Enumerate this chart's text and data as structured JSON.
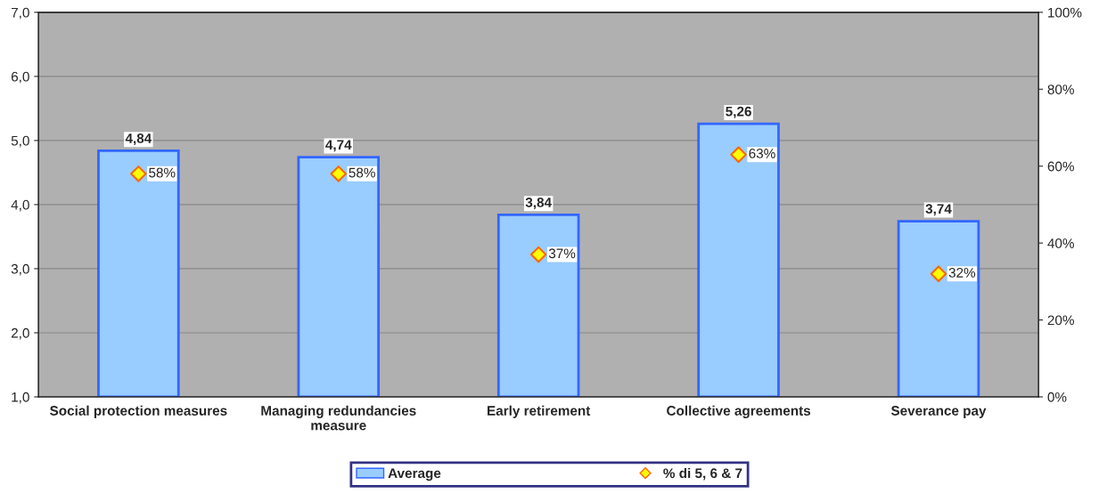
{
  "chart_data": {
    "type": "bar",
    "categories": [
      "Social protection measures",
      "Managing redundancies\nmeasure",
      "Early retirement",
      "Collective agreements",
      "Severance pay"
    ],
    "series": [
      {
        "name": "Average",
        "color": "#99ccff",
        "values": [
          4.84,
          4.74,
          3.84,
          5.26,
          3.74
        ],
        "value_labels": [
          "4,84",
          "4,74",
          "3,84",
          "5,26",
          "3,74"
        ]
      },
      {
        "name": "% di 5, 6 & 7",
        "type": "scatter",
        "axis": "y2",
        "color": "#ffff00",
        "marker": "diamond",
        "values": [
          58,
          58,
          37,
          63,
          32
        ],
        "value_labels": [
          "58%",
          "58%",
          "37%",
          "63%",
          "32%"
        ]
      }
    ],
    "ylim": [
      1,
      7
    ],
    "yticks": [
      {
        "value": 1,
        "label": "1,0"
      },
      {
        "value": 2,
        "label": "2,0"
      },
      {
        "value": 3,
        "label": "3,0"
      },
      {
        "value": 4,
        "label": "4,0"
      },
      {
        "value": 5,
        "label": "5,0"
      },
      {
        "value": 6,
        "label": "6,0"
      },
      {
        "value": 7,
        "label": "7,0"
      }
    ],
    "y2lim": [
      0,
      100
    ],
    "y2ticks": [
      {
        "value": 0,
        "label": "0%"
      },
      {
        "value": 20,
        "label": "20%"
      },
      {
        "value": 40,
        "label": "40%"
      },
      {
        "value": 60,
        "label": "60%"
      },
      {
        "value": 80,
        "label": "80%"
      },
      {
        "value": 100,
        "label": "100%"
      }
    ],
    "grid": "y",
    "legend": "bottom"
  }
}
